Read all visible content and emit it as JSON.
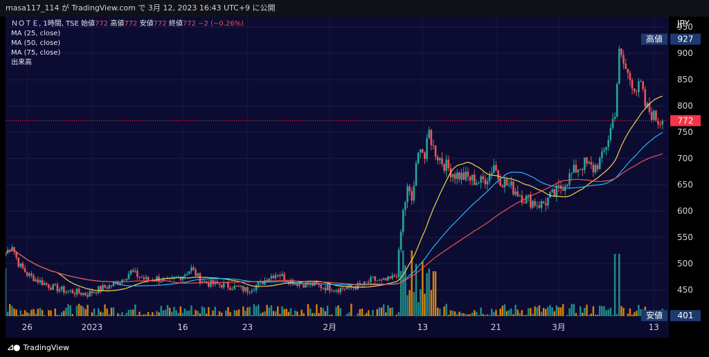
{
  "header": {
    "caption": "masa117_114 が TradingView.com で 3月 12, 2023 16:43 UTC+9 に公開"
  },
  "legend": {
    "symbol": "ＮＯＴＥ, 1時間, TSE",
    "ohlc": [
      {
        "label": "始値",
        "value": "772"
      },
      {
        "label": "高値",
        "value": "772"
      },
      {
        "label": "安値",
        "value": "772"
      },
      {
        "label": "終値",
        "value": "772"
      }
    ],
    "change": "−2 (−0.26%)",
    "indicators": [
      "MA (25, close)",
      "MA (50, close)",
      "MA (75, close)",
      "出来高"
    ]
  },
  "footer": {
    "brand": "TradingView",
    "logo_icon": "tradingview-logo-icon"
  },
  "chart_data": {
    "type": "candlestick",
    "currency": "JPY",
    "y_ticks": [
      450,
      500,
      550,
      600,
      650,
      700,
      750,
      800,
      850,
      900,
      950
    ],
    "ylim": [
      400,
      970
    ],
    "x_ticks": [
      {
        "label": "26",
        "x": 10
      },
      {
        "label": "2023",
        "x": 40
      },
      {
        "label": "16",
        "x": 82
      },
      {
        "label": "23",
        "x": 112
      },
      {
        "label": "2月",
        "x": 150
      },
      {
        "label": "13",
        "x": 193
      },
      {
        "label": "21",
        "x": 227
      },
      {
        "label": "3月",
        "x": 256
      },
      {
        "label": "13",
        "x": 300
      }
    ],
    "xlim": [
      0,
      306
    ],
    "badges": [
      {
        "label": "高値",
        "value": "927",
        "price": 927,
        "color": "#1e3a6e"
      },
      {
        "label": "",
        "value": "772",
        "price": 772,
        "color": "#f23645"
      },
      {
        "label": "安値",
        "value": "401",
        "price": 401,
        "color": "#1e3a6e"
      }
    ],
    "last_price": 772,
    "colors": {
      "up": "#26a69a",
      "down": "#ef5350",
      "ma25": "#f5d547",
      "ma50": "#29b6f6",
      "ma75": "#ef5350",
      "volume_up": "#26a69a",
      "volume_down": "#ff9800"
    },
    "anchors": [
      [
        0,
        520
      ],
      [
        3,
        535
      ],
      [
        6,
        500
      ],
      [
        10,
        480
      ],
      [
        14,
        470
      ],
      [
        18,
        462
      ],
      [
        22,
        455
      ],
      [
        28,
        448
      ],
      [
        34,
        445
      ],
      [
        38,
        442
      ],
      [
        42,
        450
      ],
      [
        46,
        455
      ],
      [
        50,
        460
      ],
      [
        54,
        470
      ],
      [
        58,
        485
      ],
      [
        62,
        475
      ],
      [
        66,
        468
      ],
      [
        70,
        472
      ],
      [
        76,
        465
      ],
      [
        82,
        478
      ],
      [
        86,
        490
      ],
      [
        90,
        470
      ],
      [
        94,
        462
      ],
      [
        100,
        460
      ],
      [
        106,
        455
      ],
      [
        112,
        450
      ],
      [
        118,
        462
      ],
      [
        122,
        475
      ],
      [
        126,
        482
      ],
      [
        130,
        470
      ],
      [
        136,
        462
      ],
      [
        142,
        460
      ],
      [
        148,
        455
      ],
      [
        154,
        452
      ],
      [
        160,
        455
      ],
      [
        166,
        460
      ],
      [
        170,
        470
      ],
      [
        174,
        465
      ],
      [
        178,
        470
      ],
      [
        181,
        480
      ],
      [
        184,
        600
      ],
      [
        186,
        640
      ],
      [
        188,
        620
      ],
      [
        190,
        680
      ],
      [
        192,
        730
      ],
      [
        194,
        700
      ],
      [
        196,
        750
      ],
      [
        198,
        720
      ],
      [
        200,
        705
      ],
      [
        204,
        685
      ],
      [
        208,
        670
      ],
      [
        212,
        665
      ],
      [
        216,
        660
      ],
      [
        220,
        655
      ],
      [
        224,
        670
      ],
      [
        226,
        690
      ],
      [
        228,
        665
      ],
      [
        232,
        650
      ],
      [
        236,
        640
      ],
      [
        240,
        625
      ],
      [
        244,
        618
      ],
      [
        248,
        612
      ],
      [
        252,
        625
      ],
      [
        256,
        640
      ],
      [
        260,
        660
      ],
      [
        264,
        680
      ],
      [
        268,
        690
      ],
      [
        272,
        680
      ],
      [
        276,
        700
      ],
      [
        279,
        740
      ],
      [
        282,
        790
      ],
      [
        284,
        900
      ],
      [
        286,
        880
      ],
      [
        288,
        860
      ],
      [
        290,
        845
      ],
      [
        292,
        830
      ],
      [
        294,
        840
      ],
      [
        296,
        800
      ],
      [
        298,
        790
      ],
      [
        300,
        780
      ],
      [
        302,
        772
      ],
      [
        304,
        772
      ]
    ]
  }
}
